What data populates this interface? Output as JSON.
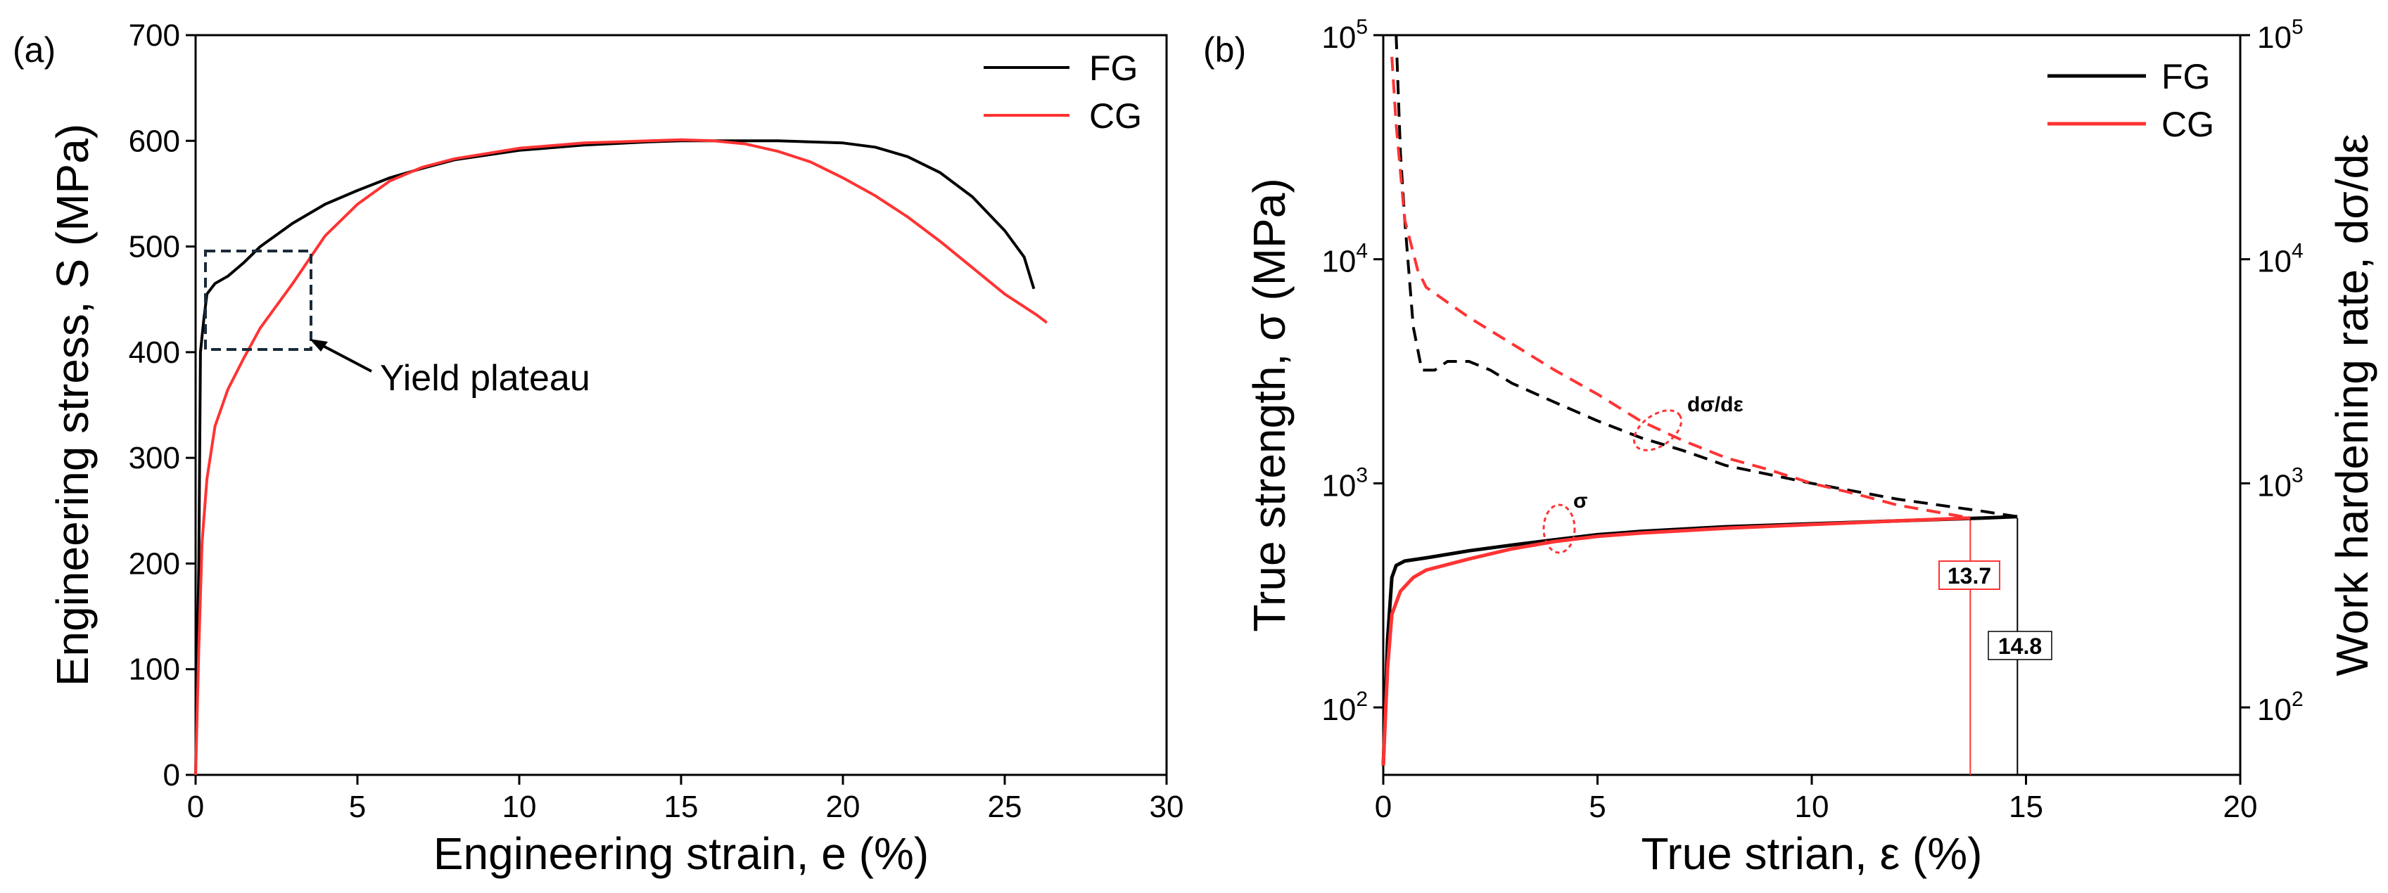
{
  "chart_data": [
    {
      "panel_label": "(a)",
      "type": "line",
      "xlabel": "Engineering strain, e (%)",
      "ylabel": "Engineering stress, S (MPa)",
      "xlim": [
        0,
        30
      ],
      "ylim": [
        0,
        700
      ],
      "xticks": [
        "0",
        "5",
        "10",
        "15",
        "20",
        "25",
        "30"
      ],
      "yticks": [
        "0",
        "100",
        "200",
        "300",
        "400",
        "500",
        "600",
        "700"
      ],
      "legend": [
        "FG",
        "CG"
      ],
      "annotation": "Yield plateau",
      "series": [
        {
          "name": "FG",
          "color": "#000000",
          "points": [
            [
              0,
              0
            ],
            [
              0.1,
              200
            ],
            [
              0.15,
              400
            ],
            [
              0.25,
              430
            ],
            [
              0.35,
              455
            ],
            [
              0.6,
              465
            ],
            [
              1.0,
              472
            ],
            [
              1.5,
              485
            ],
            [
              2,
              500
            ],
            [
              3,
              522
            ],
            [
              4,
              540
            ],
            [
              5,
              553
            ],
            [
              6,
              565
            ],
            [
              7,
              574
            ],
            [
              8,
              582
            ],
            [
              10,
              591
            ],
            [
              12,
              596
            ],
            [
              14,
              599
            ],
            [
              15,
              600
            ],
            [
              16,
              600
            ],
            [
              18,
              600
            ],
            [
              20,
              598
            ],
            [
              21,
              594
            ],
            [
              22,
              585
            ],
            [
              23,
              570
            ],
            [
              24,
              547
            ],
            [
              25,
              515
            ],
            [
              25.6,
              490
            ],
            [
              25.9,
              460
            ]
          ]
        },
        {
          "name": "CG",
          "color": "#ff3333",
          "points": [
            [
              0,
              0
            ],
            [
              0.1,
              120
            ],
            [
              0.2,
              220
            ],
            [
              0.35,
              280
            ],
            [
              0.6,
              330
            ],
            [
              1,
              365
            ],
            [
              1.5,
              395
            ],
            [
              2,
              423
            ],
            [
              3,
              465
            ],
            [
              4,
              510
            ],
            [
              5,
              540
            ],
            [
              6,
              562
            ],
            [
              7,
              575
            ],
            [
              8,
              583
            ],
            [
              10,
              593
            ],
            [
              12,
              598
            ],
            [
              14,
              600
            ],
            [
              15,
              601
            ],
            [
              16,
              600
            ],
            [
              17,
              597
            ],
            [
              18,
              590
            ],
            [
              19,
              580
            ],
            [
              20,
              565
            ],
            [
              21,
              548
            ],
            [
              22,
              528
            ],
            [
              23,
              505
            ],
            [
              24,
              480
            ],
            [
              25,
              455
            ],
            [
              26,
              435
            ],
            [
              26.3,
              428
            ]
          ]
        }
      ]
    },
    {
      "panel_label": "(b)",
      "type": "line",
      "xlabel": "True strian, ε (%)",
      "ylabel_left": "True strength, σ (MPa)",
      "ylabel_right": "Work hardening rate, dσ/dε",
      "xlim": [
        0,
        20
      ],
      "ylim_log": [
        50,
        100000
      ],
      "xticks": [
        "0",
        "5",
        "10",
        "15",
        "20"
      ],
      "yticks_log": [
        100,
        1000,
        10000,
        100000
      ],
      "legend": [
        "FG",
        "CG"
      ],
      "annotations": [
        "dσ/dε",
        "σ",
        "13.7",
        "14.8"
      ],
      "series": [
        {
          "name": "FG σ",
          "color": "#000000",
          "style": "solid",
          "points": [
            [
              0,
              55
            ],
            [
              0.1,
              200
            ],
            [
              0.2,
              380
            ],
            [
              0.3,
              430
            ],
            [
              0.5,
              450
            ],
            [
              1,
              465
            ],
            [
              2,
              500
            ],
            [
              3,
              530
            ],
            [
              4,
              560
            ],
            [
              5,
              590
            ],
            [
              6,
              610
            ],
            [
              8,
              640
            ],
            [
              10,
              660
            ],
            [
              12,
              680
            ],
            [
              14,
              700
            ],
            [
              14.8,
              710
            ]
          ]
        },
        {
          "name": "CG σ",
          "color": "#ff3333",
          "style": "solid",
          "points": [
            [
              0,
              55
            ],
            [
              0.1,
              150
            ],
            [
              0.2,
              260
            ],
            [
              0.4,
              330
            ],
            [
              0.7,
              380
            ],
            [
              1,
              410
            ],
            [
              2,
              460
            ],
            [
              3,
              510
            ],
            [
              4,
              550
            ],
            [
              5,
              580
            ],
            [
              6,
              600
            ],
            [
              8,
              630
            ],
            [
              10,
              655
            ],
            [
              12,
              680
            ],
            [
              13.7,
              700
            ]
          ]
        },
        {
          "name": "FG dσ/dε",
          "color": "#000000",
          "style": "dashed",
          "points": [
            [
              0.3,
              100000
            ],
            [
              0.4,
              30000
            ],
            [
              0.5,
              15000
            ],
            [
              0.7,
              5000
            ],
            [
              0.9,
              3200
            ],
            [
              1.2,
              3200
            ],
            [
              1.5,
              3500
            ],
            [
              2,
              3500
            ],
            [
              2.5,
              3200
            ],
            [
              3,
              2800
            ],
            [
              4,
              2300
            ],
            [
              5,
              1900
            ],
            [
              6,
              1600
            ],
            [
              7,
              1400
            ],
            [
              8,
              1200
            ],
            [
              10,
              1000
            ],
            [
              12,
              850
            ],
            [
              14,
              750
            ],
            [
              14.8,
              710
            ]
          ]
        },
        {
          "name": "CG dσ/dε",
          "color": "#ff3333",
          "style": "dashed",
          "points": [
            [
              0.2,
              80000
            ],
            [
              0.3,
              40000
            ],
            [
              0.5,
              15000
            ],
            [
              0.8,
              9000
            ],
            [
              1,
              7500
            ],
            [
              2,
              5500
            ],
            [
              3,
              4200
            ],
            [
              4,
              3200
            ],
            [
              5,
              2500
            ],
            [
              6,
              1900
            ],
            [
              7,
              1550
            ],
            [
              8,
              1300
            ],
            [
              9,
              1150
            ],
            [
              10,
              1000
            ],
            [
              11,
              900
            ],
            [
              12,
              800
            ],
            [
              13,
              740
            ],
            [
              13.7,
              700
            ]
          ]
        }
      ],
      "markers": [
        {
          "label": "13.7",
          "x": 13.7,
          "color": "#ff3333"
        },
        {
          "label": "14.8",
          "x": 14.8,
          "color": "#000000"
        }
      ]
    }
  ]
}
